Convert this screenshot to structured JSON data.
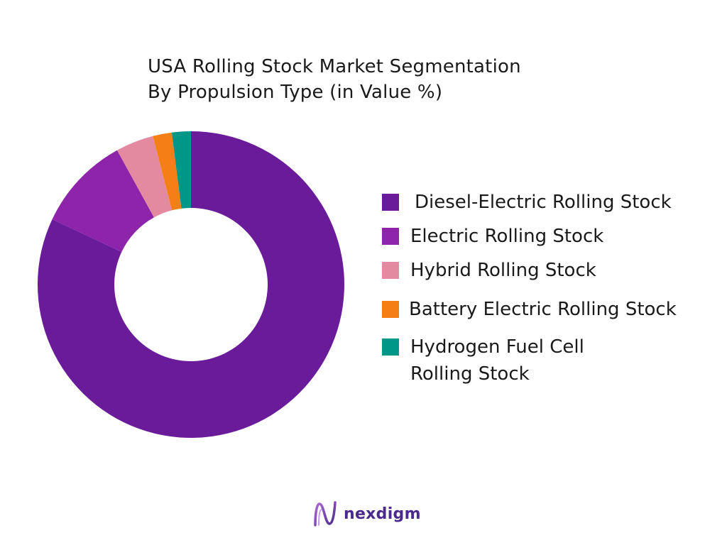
{
  "chart_data": {
    "type": "pie",
    "title_line1": "USA Rolling Stock Market Segmentation",
    "title_line2": "By Propulsion Type (in Value %)",
    "legend_position": "right",
    "categories": [
      "Diesel-Electric Rolling Stock",
      "Electric Rolling Stock",
      "Hybrid Rolling Stock",
      "Battery Electric Rolling Stock",
      "Hydrogen Fuel Cell\nRolling Stock"
    ],
    "values": [
      82,
      10,
      4,
      2,
      2
    ],
    "colors": [
      "#6a1b9a",
      "#8e24aa",
      "#e48aa0",
      "#f57f17",
      "#009688"
    ]
  },
  "logo": {
    "text": "nexdigm"
  }
}
